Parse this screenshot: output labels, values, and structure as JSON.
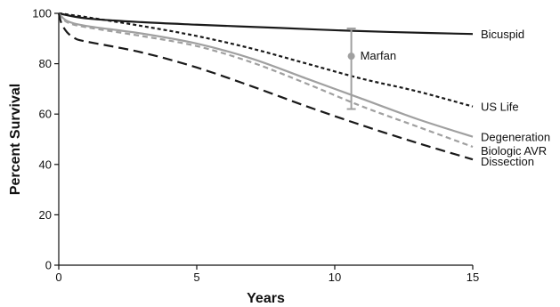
{
  "chart_data": {
    "type": "line",
    "title": "",
    "xlabel": "Years",
    "ylabel": "Percent Survival",
    "xlim": [
      0,
      15
    ],
    "ylim": [
      0,
      100
    ],
    "xticks": [
      0,
      5,
      10,
      15
    ],
    "yticks": [
      0,
      20,
      40,
      60,
      80,
      100
    ],
    "grid": false,
    "legend": "direct labels at line ends",
    "series": [
      {
        "name": "Bicuspid",
        "color": "#1a1a1a",
        "dash": "solid",
        "points": [
          [
            0,
            100
          ],
          [
            1,
            98
          ],
          [
            3,
            96.5
          ],
          [
            5,
            95.5
          ],
          [
            8,
            94.2
          ],
          [
            10,
            93.3
          ],
          [
            12,
            92.6
          ],
          [
            15,
            91.8
          ]
        ]
      },
      {
        "name": "US Life",
        "color": "#1a1a1a",
        "dash": "short-dash",
        "points": [
          [
            0,
            100
          ],
          [
            1,
            98.5
          ],
          [
            3,
            95
          ],
          [
            5,
            91
          ],
          [
            7,
            86
          ],
          [
            9,
            80
          ],
          [
            11,
            74
          ],
          [
            13,
            69
          ],
          [
            15,
            63
          ]
        ]
      },
      {
        "name": "Degeneration",
        "color": "#a0a0a0",
        "dash": "solid",
        "points": [
          [
            0,
            100
          ],
          [
            0.3,
            97
          ],
          [
            1,
            95
          ],
          [
            3,
            92
          ],
          [
            5,
            88
          ],
          [
            7,
            82
          ],
          [
            9,
            74
          ],
          [
            11,
            66
          ],
          [
            13,
            58
          ],
          [
            15,
            51
          ]
        ]
      },
      {
        "name": "Biologic AVR",
        "color": "#a0a0a0",
        "dash": "dash",
        "points": [
          [
            0,
            100
          ],
          [
            0.3,
            96.5
          ],
          [
            1,
            94.5
          ],
          [
            3,
            91
          ],
          [
            5,
            87
          ],
          [
            7,
            80.5
          ],
          [
            9,
            72
          ],
          [
            11,
            63
          ],
          [
            13,
            55
          ],
          [
            15,
            47
          ]
        ]
      },
      {
        "name": "Dissection",
        "color": "#1a1a1a",
        "dash": "long-dash",
        "points": [
          [
            0,
            100
          ],
          [
            0.1,
            96
          ],
          [
            0.3,
            92.5
          ],
          [
            0.6,
            90
          ],
          [
            1,
            88.8
          ],
          [
            3,
            84.5
          ],
          [
            5,
            78.5
          ],
          [
            7,
            71
          ],
          [
            9,
            63
          ],
          [
            11,
            55.5
          ],
          [
            13,
            48.5
          ],
          [
            15,
            42
          ]
        ]
      }
    ],
    "error_bar": {
      "name": "Marfan",
      "color": "#a0a0a0",
      "x": 10.6,
      "value": 83,
      "lower": 62,
      "upper": 94
    }
  }
}
